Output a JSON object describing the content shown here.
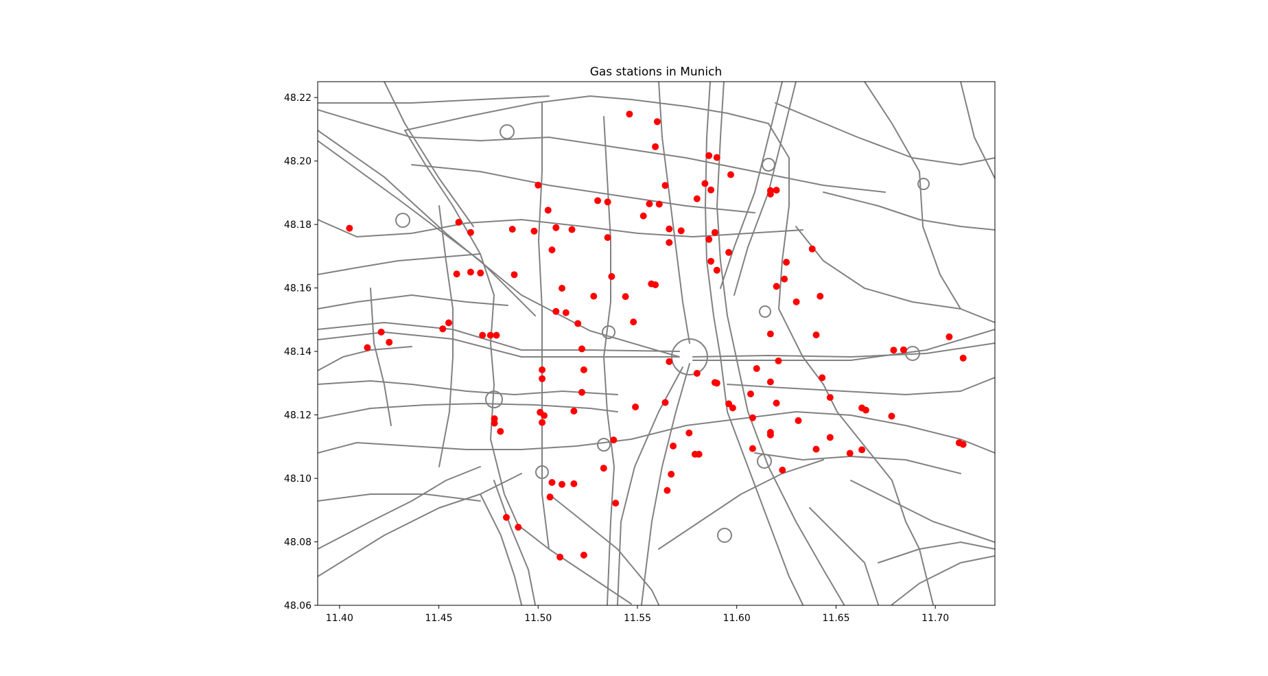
{
  "title": "Gas stations in Munich",
  "colors": {
    "road": "#808080",
    "station": "#ff0000",
    "background": "#ffffff",
    "frame": "#000000"
  },
  "axes": {
    "xlim": [
      11.389,
      11.73
    ],
    "ylim": [
      48.06,
      48.225
    ],
    "x_ticks": [
      {
        "value": 11.4,
        "label": "11.40"
      },
      {
        "value": 11.45,
        "label": "11.45"
      },
      {
        "value": 11.5,
        "label": "11.50"
      },
      {
        "value": 11.55,
        "label": "11.55"
      },
      {
        "value": 11.6,
        "label": "11.60"
      },
      {
        "value": 11.65,
        "label": "11.65"
      },
      {
        "value": 11.7,
        "label": "11.70"
      }
    ],
    "y_ticks": [
      {
        "value": 48.06,
        "label": "48.06"
      },
      {
        "value": 48.08,
        "label": "48.08"
      },
      {
        "value": 48.1,
        "label": "48.10"
      },
      {
        "value": 48.12,
        "label": "48.12"
      },
      {
        "value": 48.14,
        "label": "48.14"
      },
      {
        "value": 48.16,
        "label": "48.16"
      },
      {
        "value": 48.18,
        "label": "48.18"
      },
      {
        "value": 48.2,
        "label": "48.20"
      },
      {
        "value": 48.22,
        "label": "48.22"
      }
    ]
  },
  "chart_data": {
    "type": "scatter",
    "title": "Gas stations in Munich",
    "xlabel": "",
    "ylabel": "",
    "xlim": [
      11.389,
      11.73
    ],
    "ylim": [
      48.06,
      48.225
    ],
    "grid": false,
    "background_layer": "street network lines in gray",
    "series": [
      {
        "points": [
          [
            11.546,
            48.2148
          ],
          [
            11.56,
            48.2124
          ],
          [
            11.559,
            48.2045
          ],
          [
            11.586,
            48.2017
          ],
          [
            11.59,
            48.2011
          ],
          [
            11.597,
            48.1957
          ],
          [
            11.5,
            48.1924
          ],
          [
            11.564,
            48.1923
          ],
          [
            11.584,
            48.1929
          ],
          [
            11.587,
            48.1909
          ],
          [
            11.617,
            48.1907
          ],
          [
            11.62,
            48.1908
          ],
          [
            11.617,
            48.1896
          ],
          [
            11.53,
            48.1875
          ],
          [
            11.535,
            48.1871
          ],
          [
            11.58,
            48.1881
          ],
          [
            11.556,
            48.1865
          ],
          [
            11.561,
            48.1864
          ],
          [
            11.505,
            48.1845
          ],
          [
            11.553,
            48.1827
          ],
          [
            11.46,
            48.1807
          ],
          [
            11.405,
            48.1788
          ],
          [
            11.466,
            48.1775
          ],
          [
            11.487,
            48.1785
          ],
          [
            11.498,
            48.1779
          ],
          [
            11.509,
            48.179
          ],
          [
            11.517,
            48.1784
          ],
          [
            11.566,
            48.1786
          ],
          [
            11.572,
            48.178
          ],
          [
            11.589,
            48.1775
          ],
          [
            11.535,
            48.1759
          ],
          [
            11.586,
            48.1753
          ],
          [
            11.566,
            48.1743
          ],
          [
            11.507,
            48.172
          ],
          [
            11.596,
            48.1712
          ],
          [
            11.638,
            48.1723
          ],
          [
            11.625,
            48.1681
          ],
          [
            11.587,
            48.1684
          ],
          [
            11.59,
            48.1656
          ],
          [
            11.459,
            48.1644
          ],
          [
            11.466,
            48.165
          ],
          [
            11.471,
            48.1647
          ],
          [
            11.488,
            48.1642
          ],
          [
            11.537,
            48.1636
          ],
          [
            11.624,
            48.1628
          ],
          [
            11.512,
            48.1599
          ],
          [
            11.557,
            48.1613
          ],
          [
            11.559,
            48.161
          ],
          [
            11.62,
            48.1605
          ],
          [
            11.528,
            48.1574
          ],
          [
            11.544,
            48.1573
          ],
          [
            11.642,
            48.1574
          ],
          [
            11.63,
            48.1556
          ],
          [
            11.509,
            48.1526
          ],
          [
            11.514,
            48.1522
          ],
          [
            11.455,
            48.149
          ],
          [
            11.52,
            48.1488
          ],
          [
            11.548,
            48.1493
          ],
          [
            11.452,
            48.1471
          ],
          [
            11.421,
            48.1461
          ],
          [
            11.472,
            48.1451
          ],
          [
            11.476,
            48.1451
          ],
          [
            11.479,
            48.1451
          ],
          [
            11.617,
            48.1455
          ],
          [
            11.64,
            48.1452
          ],
          [
            11.425,
            48.1429
          ],
          [
            11.414,
            48.1412
          ],
          [
            11.522,
            48.1408
          ],
          [
            11.707,
            48.1446
          ],
          [
            11.679,
            48.1404
          ],
          [
            11.684,
            48.1405
          ],
          [
            11.714,
            48.1379
          ],
          [
            11.566,
            48.1368
          ],
          [
            11.621,
            48.137
          ],
          [
            11.502,
            48.1342
          ],
          [
            11.523,
            48.1342
          ],
          [
            11.61,
            48.1346
          ],
          [
            11.58,
            48.1331
          ],
          [
            11.502,
            48.1314
          ],
          [
            11.589,
            48.1302
          ],
          [
            11.59,
            48.13
          ],
          [
            11.617,
            48.1304
          ],
          [
            11.643,
            48.1317
          ],
          [
            11.522,
            48.1271
          ],
          [
            11.607,
            48.1266
          ],
          [
            11.647,
            48.1255
          ],
          [
            11.564,
            48.1239
          ],
          [
            11.596,
            48.1235
          ],
          [
            11.62,
            48.1237
          ],
          [
            11.549,
            48.1225
          ],
          [
            11.598,
            48.1222
          ],
          [
            11.663,
            48.1222
          ],
          [
            11.665,
            48.1215
          ],
          [
            11.518,
            48.1212
          ],
          [
            11.501,
            48.1208
          ],
          [
            11.503,
            48.1198
          ],
          [
            11.678,
            48.1196
          ],
          [
            11.478,
            48.1188
          ],
          [
            11.608,
            48.1191
          ],
          [
            11.631,
            48.1182
          ],
          [
            11.478,
            48.1174
          ],
          [
            11.502,
            48.1176
          ],
          [
            11.481,
            48.1148
          ],
          [
            11.576,
            48.1143
          ],
          [
            11.617,
            48.1145
          ],
          [
            11.617,
            48.1137
          ],
          [
            11.647,
            48.1129
          ],
          [
            11.538,
            48.1121
          ],
          [
            11.712,
            48.1112
          ],
          [
            11.714,
            48.1107
          ],
          [
            11.568,
            48.1102
          ],
          [
            11.608,
            48.1094
          ],
          [
            11.64,
            48.1092
          ],
          [
            11.663,
            48.109
          ],
          [
            11.579,
            48.1076
          ],
          [
            11.581,
            48.1076
          ],
          [
            11.657,
            48.1079
          ],
          [
            11.533,
            48.1032
          ],
          [
            11.623,
            48.1026
          ],
          [
            11.567,
            48.1013
          ],
          [
            11.507,
            48.0987
          ],
          [
            11.512,
            48.0981
          ],
          [
            11.518,
            48.0983
          ],
          [
            11.565,
            48.0962
          ],
          [
            11.506,
            48.0941
          ],
          [
            11.539,
            48.0922
          ],
          [
            11.484,
            48.0877
          ],
          [
            11.49,
            48.0846
          ],
          [
            11.523,
            48.0758
          ],
          [
            11.511,
            48.0752
          ]
        ]
      }
    ]
  }
}
